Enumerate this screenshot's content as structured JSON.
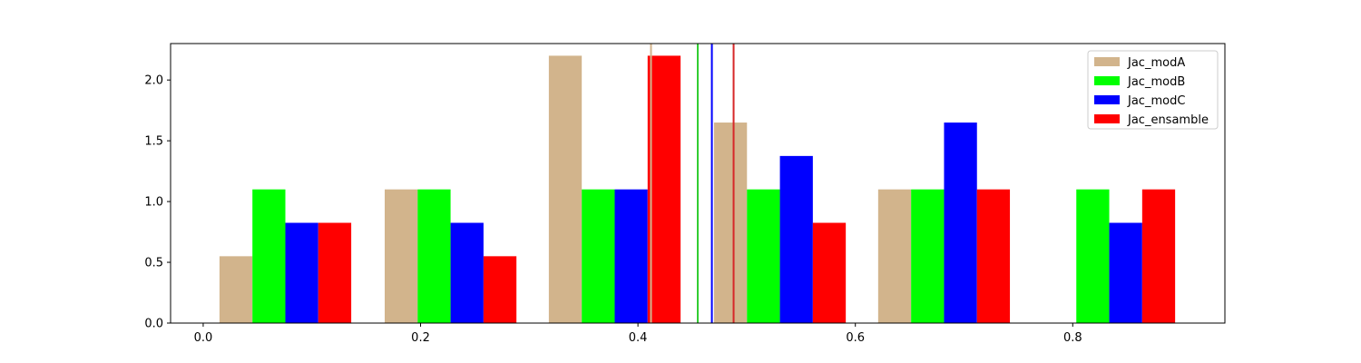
{
  "chart_data": {
    "type": "bar",
    "title": "",
    "xlabel": "",
    "ylabel": "",
    "xlim": [
      -0.03,
      0.94
    ],
    "ylim": [
      0,
      2.3
    ],
    "grid": false,
    "legend_position": "top-right",
    "bin_width": 0.1515,
    "bin_starts": [
      0.015,
      0.167,
      0.318,
      0.47,
      0.621,
      0.773
    ],
    "series": [
      {
        "name": "Jac_modA",
        "color": "#d2b48c",
        "values": [
          0.55,
          1.1,
          2.2,
          1.65,
          1.1,
          0.0
        ]
      },
      {
        "name": "Jac_modB",
        "color": "#00ff00",
        "values": [
          1.1,
          1.1,
          1.1,
          1.1,
          1.1,
          1.1
        ]
      },
      {
        "name": "Jac_modC",
        "color": "#0000ff",
        "values": [
          0.825,
          0.825,
          1.1,
          1.375,
          1.65,
          0.825
        ]
      },
      {
        "name": "Jac_ensamble",
        "color": "#ff0000",
        "values": [
          0.825,
          0.55,
          2.2,
          0.825,
          1.1,
          1.1
        ]
      }
    ],
    "mean_lines": [
      {
        "series": "Jac_modA",
        "color": "#d2b48c",
        "x": 0.412
      },
      {
        "series": "Jac_modB",
        "color": "#32cd32",
        "x": 0.455
      },
      {
        "series": "Jac_modC",
        "color": "#0000ff",
        "x": 0.468
      },
      {
        "series": "Jac_ensamble",
        "color": "#d62728",
        "x": 0.488
      }
    ],
    "x_ticks": [
      0.0,
      0.2,
      0.4,
      0.6,
      0.8
    ],
    "x_tick_labels": [
      "0.0",
      "0.2",
      "0.4",
      "0.6",
      "0.8"
    ],
    "y_ticks": [
      0.0,
      0.5,
      1.0,
      1.5,
      2.0
    ],
    "y_tick_labels": [
      "0.0",
      "0.5",
      "1.0",
      "1.5",
      "2.0"
    ]
  }
}
